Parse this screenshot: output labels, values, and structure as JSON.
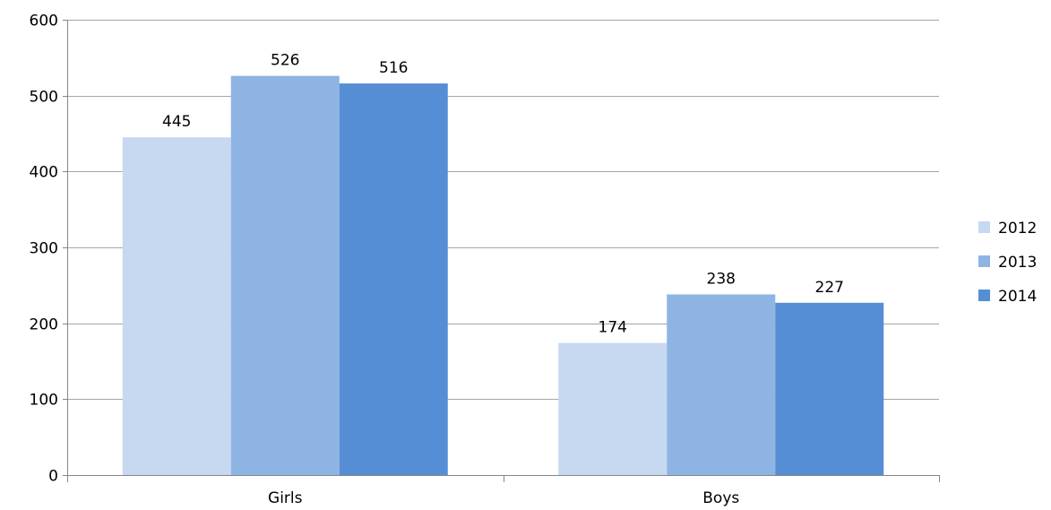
{
  "chart_data": {
    "type": "bar",
    "title": "",
    "xlabel": "",
    "ylabel": "",
    "categories": [
      "Girls",
      "Boys"
    ],
    "series": [
      {
        "name": "2012",
        "values": [
          445,
          174
        ],
        "color": "#c6d9f1"
      },
      {
        "name": "2013",
        "values": [
          526,
          238
        ],
        "color": "#8eb4e3"
      },
      {
        "name": "2014",
        "values": [
          516,
          227
        ],
        "color": "#558ed5"
      }
    ],
    "ylim": [
      0,
      600
    ],
    "yticks": [
      0,
      100,
      200,
      300,
      400,
      500,
      600
    ],
    "ytick_labels": [
      "0",
      "100",
      "200",
      "300",
      "400",
      "500",
      "600"
    ],
    "grid": true,
    "grid_color": "#a6a6a6",
    "legend_position": "right",
    "data_labels": true
  }
}
